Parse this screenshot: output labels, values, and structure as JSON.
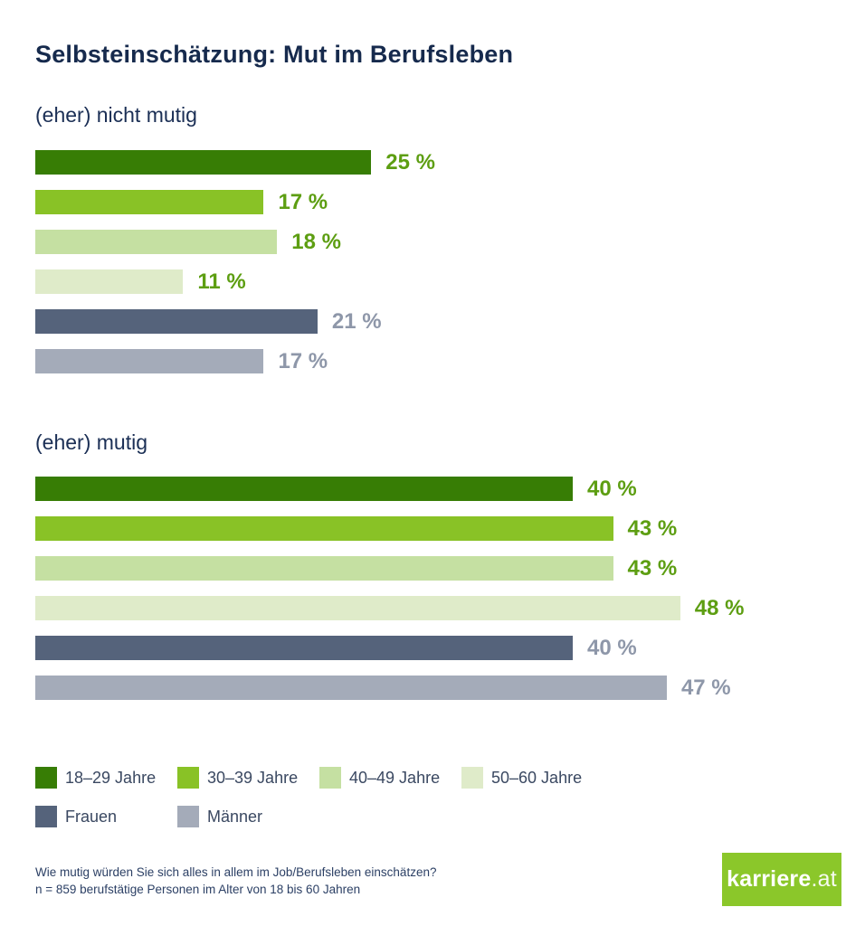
{
  "page": {
    "title": "Selbsteinschätzung: Mut im Berufsleben"
  },
  "chart_data": {
    "type": "bar",
    "orientation": "horizontal",
    "title": "Selbsteinschätzung: Mut im Berufsleben",
    "unit": "%",
    "value_suffix": " %",
    "xlim": [
      0,
      59
    ],
    "grid": false,
    "legend_position": "bottom",
    "categories": [
      "18–29 Jahre",
      "30–39 Jahre",
      "40–49 Jahre",
      "50–60 Jahre",
      "Frauen",
      "Männer"
    ],
    "category_colors": [
      "#377d05",
      "#89c226",
      "#c5e0a2",
      "#dfebc9",
      "#55637b",
      "#a4abb9"
    ],
    "value_label_colors": [
      "#5d9e12",
      "#5d9e12",
      "#5d9e12",
      "#5d9e12",
      "#8e97a9",
      "#8e97a9"
    ],
    "sections": [
      {
        "heading": "(eher) nicht mutig",
        "values": [
          25,
          17,
          18,
          11,
          21,
          17
        ]
      },
      {
        "heading": "(eher) mutig",
        "values": [
          40,
          43,
          43,
          48,
          40,
          47
        ]
      }
    ]
  },
  "legend": {
    "items": [
      {
        "label": "18–29 Jahre",
        "color": "#377d05"
      },
      {
        "label": "30–39 Jahre",
        "color": "#89c226"
      },
      {
        "label": "40–49 Jahre",
        "color": "#c5e0a2"
      },
      {
        "label": "50–60 Jahre",
        "color": "#dfebc9"
      },
      {
        "label": "Frauen",
        "color": "#55637b"
      },
      {
        "label": "Männer",
        "color": "#a4abb9"
      }
    ]
  },
  "footer": {
    "line1": "Wie mutig würden Sie sich alles in allem im Job/Berufsleben einschätzen?",
    "line2": "n = 859 berufstätige Personen im Alter von 18 bis 60 Jahren"
  },
  "logo": {
    "brand_bold": "karriere",
    "brand_suffix": ".at",
    "background": "#8bc72a"
  }
}
